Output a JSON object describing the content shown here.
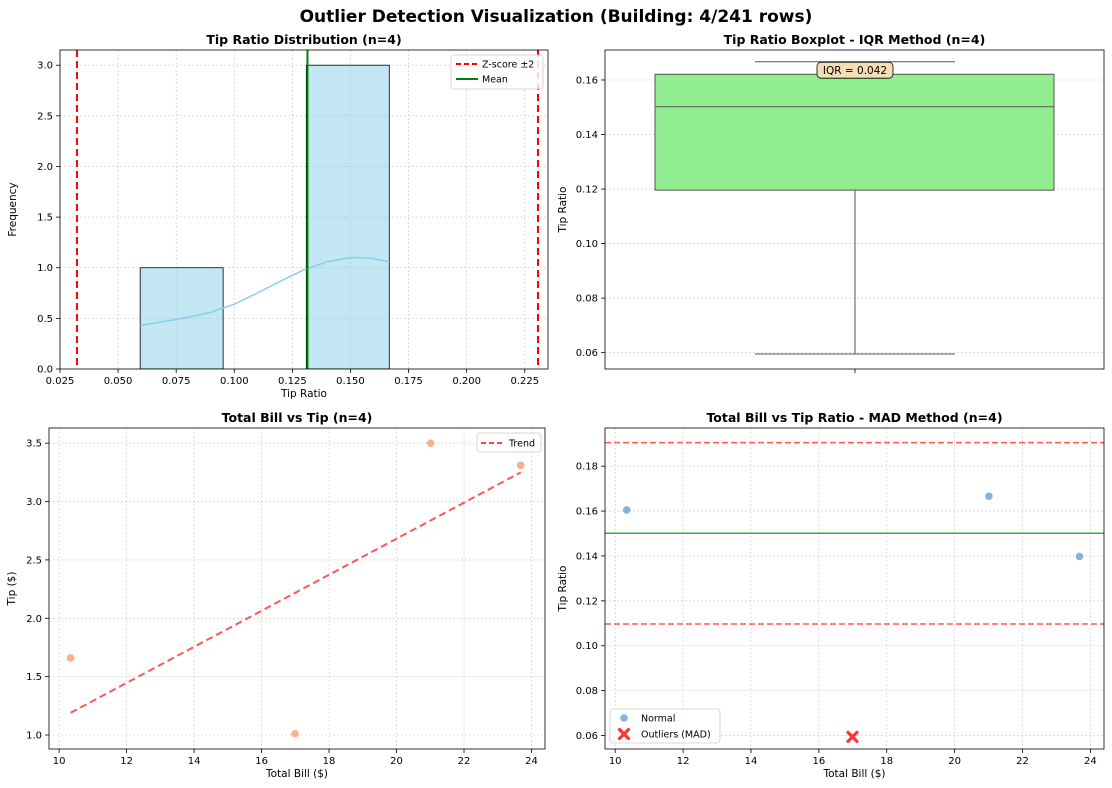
{
  "figure_title": "Outlier Detection Visualization (Building: 4/241 rows)",
  "chart_data": [
    {
      "type": "bar",
      "subtype": "histogram",
      "title": "Tip Ratio Distribution (n=4)",
      "xlabel": "Tip Ratio",
      "ylabel": "Frequency",
      "xlim": [
        0.025,
        0.235
      ],
      "ylim": [
        0,
        3.15
      ],
      "xticks": [
        0.025,
        0.05,
        0.075,
        0.1,
        0.125,
        0.15,
        0.175,
        0.2,
        0.225
      ],
      "xtick_labels": [
        "0.025",
        "0.050",
        "0.075",
        "0.100",
        "0.125",
        "0.150",
        "0.175",
        "0.200",
        "0.225"
      ],
      "yticks": [
        0,
        0.5,
        1,
        1.5,
        2,
        2.5,
        3
      ],
      "ytick_labels": [
        "0.0",
        "0.5",
        "1.0",
        "1.5",
        "2.0",
        "2.5",
        "3.0"
      ],
      "bins": [
        {
          "x0": 0.0595,
          "x1": 0.0952,
          "count": 1
        },
        {
          "x0": 0.131,
          "x1": 0.1667,
          "count": 3
        }
      ],
      "bar_color": "#87ceeb",
      "kde": {
        "x": [
          0.0595,
          0.07,
          0.08,
          0.09,
          0.1,
          0.11,
          0.12,
          0.13,
          0.14,
          0.15,
          0.155,
          0.16,
          0.1667
        ],
        "y": [
          0.43,
          0.47,
          0.51,
          0.56,
          0.64,
          0.75,
          0.87,
          0.98,
          1.06,
          1.1,
          1.1,
          1.09,
          1.06
        ]
      },
      "vlines": [
        {
          "x": 0.0323,
          "color": "#ff0000",
          "style": "dashed",
          "legend": "Z-score ±2"
        },
        {
          "x": 0.2307,
          "color": "#ff0000",
          "style": "dashed",
          "legend": null
        },
        {
          "x": 0.1315,
          "color": "#008000",
          "style": "solid",
          "legend": "Mean"
        }
      ],
      "legend": [
        "Z-score ±2",
        "Mean"
      ],
      "legend_position": "top-right",
      "grid": true
    },
    {
      "type": "boxplot",
      "title": "Tip Ratio Boxplot - IQR Method (n=4)",
      "xlabel": "",
      "ylabel": "Tip Ratio",
      "ylim": [
        0.054,
        0.171
      ],
      "yticks": [
        0.06,
        0.08,
        0.1,
        0.12,
        0.14,
        0.16
      ],
      "ytick_labels": [
        "0.06",
        "0.08",
        "0.10",
        "0.12",
        "0.14",
        "0.16"
      ],
      "box": {
        "min": 0.0595,
        "q1": 0.1196,
        "median": 0.1502,
        "q3": 0.1621,
        "max": 0.1667
      },
      "box_color": "#90ee90",
      "annotation": "IQR = 0.042",
      "grid": true
    },
    {
      "type": "scatter",
      "title": "Total Bill vs Tip (n=4)",
      "xlabel": "Total Bill ($)",
      "ylabel": "Tip ($)",
      "xlim": [
        9.7,
        24.4
      ],
      "ylim": [
        0.88,
        3.63
      ],
      "xticks": [
        10,
        12,
        14,
        16,
        18,
        20,
        22,
        24
      ],
      "xtick_labels": [
        "10",
        "12",
        "14",
        "16",
        "18",
        "20",
        "22",
        "24"
      ],
      "yticks": [
        1,
        1.5,
        2,
        2.5,
        3,
        3.5
      ],
      "ytick_labels": [
        "1.0",
        "1.5",
        "2.0",
        "2.5",
        "3.0",
        "3.5"
      ],
      "points": [
        {
          "x": 10.34,
          "y": 1.66
        },
        {
          "x": 16.99,
          "y": 1.01
        },
        {
          "x": 21.01,
          "y": 3.5
        },
        {
          "x": 23.68,
          "y": 3.31
        }
      ],
      "point_color": "#ffa07a",
      "trend": {
        "x": [
          10.34,
          23.68
        ],
        "y": [
          1.19,
          3.25
        ],
        "color": "#ff4444",
        "legend": "Trend"
      },
      "legend": [
        "Trend"
      ],
      "legend_position": "top-right",
      "grid": true
    },
    {
      "type": "scatter",
      "title": "Total Bill vs Tip Ratio - MAD Method (n=4)",
      "xlabel": "Total Bill ($)",
      "ylabel": "Tip Ratio",
      "xlim": [
        9.7,
        24.4
      ],
      "ylim": [
        0.054,
        0.197
      ],
      "xticks": [
        10,
        12,
        14,
        16,
        18,
        20,
        22,
        24
      ],
      "xtick_labels": [
        "10",
        "12",
        "14",
        "16",
        "18",
        "20",
        "22",
        "24"
      ],
      "yticks": [
        0.06,
        0.08,
        0.1,
        0.12,
        0.14,
        0.16,
        0.18
      ],
      "ytick_labels": [
        "0.06",
        "0.08",
        "0.10",
        "0.12",
        "0.14",
        "0.16",
        "0.18"
      ],
      "series": [
        {
          "name": "Normal",
          "marker": "circle",
          "color": "#6a9fd0",
          "points": [
            {
              "x": 10.34,
              "y": 0.1605
            },
            {
              "x": 21.01,
              "y": 0.1666
            },
            {
              "x": 23.68,
              "y": 0.1398
            }
          ]
        },
        {
          "name": "Outliers (MAD)",
          "marker": "x",
          "color": "#ff3333",
          "points": [
            {
              "x": 16.99,
              "y": 0.0594
            }
          ]
        }
      ],
      "hlines": [
        {
          "y": 0.1905,
          "color": "#ff4444",
          "style": "dashed"
        },
        {
          "y": 0.1501,
          "color": "#2ca02c",
          "style": "solid"
        },
        {
          "y": 0.1097,
          "color": "#ff4444",
          "style": "dashed"
        }
      ],
      "legend": [
        "Normal",
        "Outliers (MAD)"
      ],
      "legend_position": "bottom-left",
      "grid": true
    }
  ]
}
